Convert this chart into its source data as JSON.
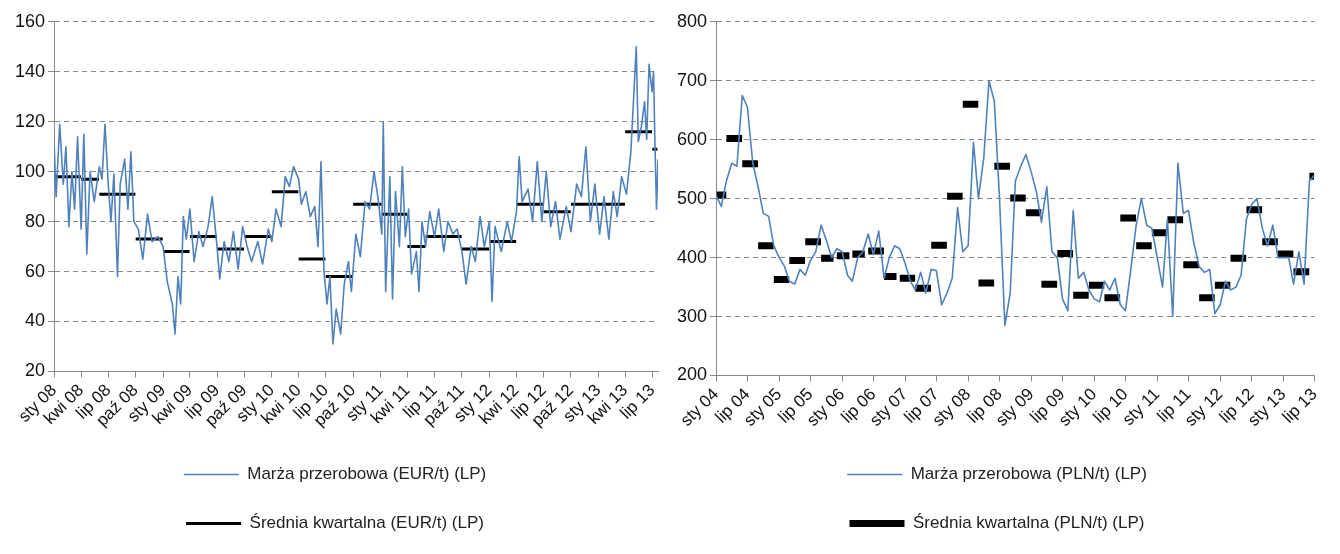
{
  "chart_data": [
    {
      "type": "line",
      "xlim": [
        "2008-01-01",
        "2013-07-20"
      ],
      "ylim": [
        20,
        160
      ],
      "yticks": [
        20,
        40,
        60,
        80,
        100,
        120,
        140,
        160
      ],
      "xticks": [
        {
          "value": "2008-01-01",
          "label": "sty 08"
        },
        {
          "value": "2008-04-01",
          "label": "kwi 08"
        },
        {
          "value": "2008-07-01",
          "label": "lip 08"
        },
        {
          "value": "2008-10-01",
          "label": "paź 08"
        },
        {
          "value": "2009-01-01",
          "label": "sty 09"
        },
        {
          "value": "2009-04-01",
          "label": "kwi 09"
        },
        {
          "value": "2009-07-01",
          "label": "lip 09"
        },
        {
          "value": "2009-10-01",
          "label": "paź 09"
        },
        {
          "value": "2010-01-01",
          "label": "sty 10"
        },
        {
          "value": "2010-04-01",
          "label": "kwi 10"
        },
        {
          "value": "2010-07-01",
          "label": "lip 10"
        },
        {
          "value": "2010-10-01",
          "label": "paź 10"
        },
        {
          "value": "2011-01-01",
          "label": "sty 11"
        },
        {
          "value": "2011-04-01",
          "label": "kwi 11"
        },
        {
          "value": "2011-07-01",
          "label": "lip 11"
        },
        {
          "value": "2011-10-01",
          "label": "paź 11"
        },
        {
          "value": "2012-01-01",
          "label": "sty 12"
        },
        {
          "value": "2012-04-01",
          "label": "kwi 12"
        },
        {
          "value": "2012-07-01",
          "label": "lip 12"
        },
        {
          "value": "2012-10-01",
          "label": "paź 12"
        },
        {
          "value": "2013-01-01",
          "label": "sty 13"
        },
        {
          "value": "2013-04-01",
          "label": "kwi 13"
        },
        {
          "value": "2013-07-01",
          "label": "lip 13"
        }
      ],
      "grid": "y",
      "legend": "bottom",
      "marker": "none",
      "series": [
        {
          "name": "Marża przerobowa (EUR/t) (LP)",
          "color": "#4f81bd",
          "x": [
            "2008-01-01",
            "2008-01-08",
            "2008-01-20",
            "2008-02-01",
            "2008-02-10",
            "2008-02-20",
            "2008-03-01",
            "2008-03-10",
            "2008-03-20",
            "2008-04-01",
            "2008-04-10",
            "2008-04-20",
            "2008-05-01",
            "2008-05-15",
            "2008-06-01",
            "2008-06-10",
            "2008-06-20",
            "2008-07-01",
            "2008-07-10",
            "2008-07-20",
            "2008-08-01",
            "2008-08-10",
            "2008-08-25",
            "2008-09-05",
            "2008-09-15",
            "2008-09-25",
            "2008-10-10",
            "2008-10-25",
            "2008-11-10",
            "2008-11-25",
            "2008-12-15",
            "2009-01-01",
            "2009-01-15",
            "2009-02-01",
            "2009-02-10",
            "2009-02-20",
            "2009-03-01",
            "2009-03-10",
            "2009-03-20",
            "2009-04-01",
            "2009-04-15",
            "2009-05-01",
            "2009-05-15",
            "2009-06-01",
            "2009-06-15",
            "2009-07-01",
            "2009-07-10",
            "2009-07-25",
            "2009-08-10",
            "2009-08-25",
            "2009-09-10",
            "2009-09-25",
            "2009-10-10",
            "2009-10-25",
            "2009-11-15",
            "2009-12-01",
            "2009-12-20",
            "2010-01-01",
            "2010-01-15",
            "2010-02-01",
            "2010-02-15",
            "2010-03-01",
            "2010-03-15",
            "2010-04-01",
            "2010-04-10",
            "2010-04-25",
            "2010-05-10",
            "2010-05-25",
            "2010-06-05",
            "2010-06-15",
            "2010-06-25",
            "2010-07-05",
            "2010-07-15",
            "2010-07-25",
            "2010-08-05",
            "2010-08-20",
            "2010-09-01",
            "2010-09-15",
            "2010-09-25",
            "2010-10-10",
            "2010-10-25",
            "2010-11-10",
            "2010-11-25",
            "2010-12-10",
            "2010-12-25",
            "2011-01-05",
            "2011-01-10",
            "2011-01-18",
            "2011-02-01",
            "2011-02-10",
            "2011-02-20",
            "2011-03-05",
            "2011-03-15",
            "2011-03-25",
            "2011-04-05",
            "2011-04-15",
            "2011-05-01",
            "2011-05-10",
            "2011-05-20",
            "2011-06-01",
            "2011-06-15",
            "2011-07-01",
            "2011-07-15",
            "2011-08-01",
            "2011-08-15",
            "2011-09-01",
            "2011-09-15",
            "2011-10-01",
            "2011-10-15",
            "2011-11-01",
            "2011-11-15",
            "2011-12-01",
            "2011-12-15",
            "2012-01-01",
            "2012-01-10",
            "2012-01-20",
            "2012-02-10",
            "2012-03-01",
            "2012-03-15",
            "2012-04-01",
            "2012-04-10",
            "2012-04-20",
            "2012-05-10",
            "2012-05-25",
            "2012-06-10",
            "2012-06-25",
            "2012-07-10",
            "2012-07-25",
            "2012-08-10",
            "2012-08-25",
            "2012-09-15",
            "2012-10-01",
            "2012-10-20",
            "2012-11-05",
            "2012-11-20",
            "2012-12-05",
            "2012-12-20",
            "2013-01-05",
            "2013-01-20",
            "2013-02-05",
            "2013-02-20",
            "2013-03-05",
            "2013-03-20",
            "2013-04-05",
            "2013-04-20",
            "2013-05-08",
            "2013-05-15",
            "2013-05-25",
            "2013-06-05",
            "2013-06-12",
            "2013-06-20",
            "2013-06-30",
            "2013-07-05",
            "2013-07-10",
            "2013-07-15",
            "2013-07-20"
          ],
          "values": [
            112,
            90,
            119,
            95,
            110,
            78,
            100,
            85,
            114,
            77,
            115,
            67,
            100,
            88,
            102,
            97,
            119,
            95,
            80,
            99,
            58,
            95,
            105,
            85,
            108,
            80,
            77,
            65,
            83,
            72,
            74,
            70,
            56,
            47,
            35,
            58,
            47,
            82,
            73,
            85,
            64,
            76,
            70,
            78,
            90,
            70,
            57,
            72,
            64,
            76,
            61,
            78,
            70,
            64,
            72,
            63,
            77,
            72,
            85,
            78,
            98,
            94,
            102,
            97,
            87,
            92,
            82,
            86,
            70,
            104,
            60,
            47,
            58,
            31,
            45,
            35,
            55,
            64,
            52,
            75,
            66,
            88,
            85,
            100,
            88,
            75,
            120,
            52,
            98,
            49,
            92,
            70,
            102,
            74,
            85,
            59,
            68,
            52,
            80,
            70,
            84,
            74,
            85,
            68,
            80,
            75,
            77,
            68,
            55,
            70,
            64,
            82,
            70,
            80,
            48,
            78,
            68,
            80,
            72,
            84,
            106,
            88,
            93,
            80,
            104,
            80,
            100,
            78,
            88,
            73,
            86,
            76,
            95,
            90,
            110,
            80,
            95,
            75,
            90,
            73,
            92,
            82,
            98,
            91,
            108,
            150,
            112,
            118,
            128,
            113,
            143,
            132,
            140,
            110,
            85,
            105
          ]
        },
        {
          "name": "Średnia kwartalna (EUR/t) (LP)",
          "color": "#000000",
          "x": [
            "2008-01-03",
            "2008-03-31"
          ],
          "values": [
            98,
            98
          ]
        },
        {
          "color": "#000000",
          "x": [
            "2008-04-01",
            "2008-05-31"
          ],
          "values": [
            97,
            97
          ]
        },
        {
          "color": "#000000",
          "x": [
            "2008-06-01",
            "2008-09-30"
          ],
          "values": [
            91,
            91
          ]
        },
        {
          "color": "#000000",
          "x": [
            "2008-10-01",
            "2008-12-31"
          ],
          "values": [
            73,
            73
          ]
        },
        {
          "color": "#000000",
          "x": [
            "2009-01-01",
            "2009-03-31"
          ],
          "values": [
            68,
            68
          ]
        },
        {
          "color": "#000000",
          "x": [
            "2009-04-01",
            "2009-06-30"
          ],
          "values": [
            74,
            74
          ]
        },
        {
          "color": "#000000",
          "x": [
            "2009-07-01",
            "2009-09-30"
          ],
          "values": [
            69,
            69
          ]
        },
        {
          "color": "#000000",
          "x": [
            "2009-10-01",
            "2009-12-31"
          ],
          "values": [
            74,
            74
          ]
        },
        {
          "color": "#000000",
          "x": [
            "2010-01-01",
            "2010-03-31"
          ],
          "values": [
            92,
            92
          ]
        },
        {
          "color": "#000000",
          "x": [
            "2010-04-01",
            "2010-06-30"
          ],
          "values": [
            65,
            65
          ]
        },
        {
          "color": "#000000",
          "x": [
            "2010-07-01",
            "2010-09-30"
          ],
          "values": [
            58,
            58
          ]
        },
        {
          "color": "#000000",
          "x": [
            "2010-10-01",
            "2011-01-04"
          ],
          "values": [
            87,
            87
          ]
        },
        {
          "color": "#000000",
          "x": [
            "2011-01-05",
            "2011-03-31"
          ],
          "values": [
            83,
            83
          ]
        },
        {
          "color": "#000000",
          "x": [
            "2011-04-01",
            "2011-05-31"
          ],
          "values": [
            70,
            70
          ]
        },
        {
          "color": "#000000",
          "x": [
            "2011-06-01",
            "2011-09-30"
          ],
          "values": [
            74,
            74
          ]
        },
        {
          "color": "#000000",
          "x": [
            "2011-10-01",
            "2011-12-31"
          ],
          "values": [
            69,
            69
          ]
        },
        {
          "color": "#000000",
          "x": [
            "2012-01-01",
            "2012-03-31"
          ],
          "values": [
            72,
            72
          ]
        },
        {
          "color": "#000000",
          "x": [
            "2012-04-01",
            "2012-06-30"
          ],
          "values": [
            87,
            87
          ]
        },
        {
          "color": "#000000",
          "x": [
            "2012-07-01",
            "2012-09-30"
          ],
          "values": [
            84,
            84
          ]
        },
        {
          "color": "#000000",
          "x": [
            "2012-10-01",
            "2013-03-31"
          ],
          "values": [
            87,
            87
          ]
        },
        {
          "color": "#000000",
          "x": [
            "2013-04-01",
            "2013-06-30"
          ],
          "values": [
            116,
            116
          ]
        },
        {
          "color": "#000000",
          "x": [
            "2013-07-01",
            "2013-07-18"
          ],
          "values": [
            109,
            109
          ]
        }
      ]
    },
    {
      "type": "line",
      "xlim": [
        "2004-01-01",
        "2013-07-01"
      ],
      "ylim": [
        200,
        800
      ],
      "yticks": [
        200,
        300,
        400,
        500,
        600,
        700,
        800
      ],
      "xticks": [
        {
          "value": "2004-01-01",
          "label": "sty 04"
        },
        {
          "value": "2004-07-01",
          "label": "lip 04"
        },
        {
          "value": "2005-01-01",
          "label": "sty 05"
        },
        {
          "value": "2005-07-01",
          "label": "lip 05"
        },
        {
          "value": "2006-01-01",
          "label": "sty 06"
        },
        {
          "value": "2006-07-01",
          "label": "lip 06"
        },
        {
          "value": "2007-01-01",
          "label": "sty 07"
        },
        {
          "value": "2007-07-01",
          "label": "lip 07"
        },
        {
          "value": "2008-01-01",
          "label": "sty 08"
        },
        {
          "value": "2008-07-01",
          "label": "lip 08"
        },
        {
          "value": "2009-01-01",
          "label": "sty 09"
        },
        {
          "value": "2009-07-01",
          "label": "lip 09"
        },
        {
          "value": "2010-01-01",
          "label": "sty 10"
        },
        {
          "value": "2010-07-01",
          "label": "lip 10"
        },
        {
          "value": "2011-01-01",
          "label": "sty 11"
        },
        {
          "value": "2011-07-01",
          "label": "lip 11"
        },
        {
          "value": "2012-01-01",
          "label": "sty 12"
        },
        {
          "value": "2012-07-01",
          "label": "lip 12"
        },
        {
          "value": "2013-01-01",
          "label": "sty 13"
        },
        {
          "value": "2013-07-01",
          "label": "lip 13"
        }
      ],
      "grid": "y",
      "legend": "bottom",
      "marker": "none",
      "series": [
        {
          "name": "Marża przerobowa (PLN/t) (LP)",
          "color": "#4f81bd",
          "x": [
            "2004-01",
            "2004-02",
            "2004-03",
            "2004-04",
            "2004-05",
            "2004-06",
            "2004-07",
            "2004-08",
            "2004-09",
            "2004-10",
            "2004-11",
            "2004-12",
            "2005-01",
            "2005-02",
            "2005-03",
            "2005-04",
            "2005-05",
            "2005-06",
            "2005-07",
            "2005-08",
            "2005-09",
            "2005-10",
            "2005-11",
            "2005-12",
            "2006-01",
            "2006-02",
            "2006-03",
            "2006-04",
            "2006-05",
            "2006-06",
            "2006-07",
            "2006-08",
            "2006-09",
            "2006-10",
            "2006-11",
            "2006-12",
            "2007-01",
            "2007-02",
            "2007-03",
            "2007-04",
            "2007-05",
            "2007-06",
            "2007-07",
            "2007-08",
            "2007-09",
            "2007-10",
            "2007-11",
            "2007-12",
            "2008-01",
            "2008-02",
            "2008-03",
            "2008-04",
            "2008-05",
            "2008-06",
            "2008-07",
            "2008-08",
            "2008-09",
            "2008-10",
            "2008-11",
            "2008-12",
            "2009-01",
            "2009-02",
            "2009-03",
            "2009-04",
            "2009-05",
            "2009-06",
            "2009-07",
            "2009-08",
            "2009-09",
            "2009-10",
            "2009-11",
            "2009-12",
            "2010-01",
            "2010-02",
            "2010-03",
            "2010-04",
            "2010-05",
            "2010-06",
            "2010-07",
            "2010-08",
            "2010-09",
            "2010-10",
            "2010-11",
            "2010-12",
            "2011-01",
            "2011-02",
            "2011-03",
            "2011-04",
            "2011-05",
            "2011-06",
            "2011-07",
            "2011-08",
            "2011-09",
            "2011-10",
            "2011-11",
            "2011-12",
            "2012-01",
            "2012-02",
            "2012-03",
            "2012-04",
            "2012-05",
            "2012-06",
            "2012-07",
            "2012-08",
            "2012-09",
            "2012-10",
            "2012-11",
            "2012-12",
            "2013-01",
            "2013-02",
            "2013-03",
            "2013-04",
            "2013-05",
            "2013-06",
            "2013-07"
          ],
          "values": [
            505,
            487,
            530,
            560,
            555,
            675,
            655,
            560,
            520,
            475,
            470,
            420,
            400,
            385,
            360,
            355,
            380,
            370,
            395,
            410,
            455,
            430,
            400,
            415,
            410,
            370,
            360,
            400,
            410,
            440,
            405,
            445,
            365,
            400,
            420,
            415,
            390,
            360,
            345,
            375,
            340,
            380,
            378,
            320,
            340,
            365,
            485,
            410,
            420,
            595,
            500,
            570,
            700,
            665,
            500,
            285,
            340,
            530,
            555,
            575,
            545,
            510,
            460,
            520,
            410,
            400,
            330,
            310,
            480,
            365,
            375,
            345,
            330,
            325,
            360,
            345,
            365,
            320,
            310,
            380,
            455,
            500,
            455,
            450,
            400,
            350,
            465,
            300,
            560,
            475,
            480,
            425,
            385,
            375,
            380,
            305,
            320,
            360,
            345,
            350,
            370,
            465,
            490,
            500,
            450,
            420,
            455,
            400,
            400,
            400,
            355,
            410,
            355,
            530,
            540
          ]
        },
        {
          "name": "Średnia kwartalna (PLN/t) (LP)",
          "color": "#000000",
          "x": [
            "2004-01-05",
            "2004-02-29"
          ],
          "values": [
            506,
            506
          ]
        },
        {
          "color": "#000000",
          "x": [
            "2004-03-01",
            "2004-05-31"
          ],
          "values": [
            602,
            602
          ]
        },
        {
          "color": "#000000",
          "x": [
            "2004-06-01",
            "2004-08-31"
          ],
          "values": [
            559,
            559
          ]
        },
        {
          "color": "#000000",
          "x": [
            "2004-09-01",
            "2004-11-30"
          ],
          "values": [
            420,
            420
          ]
        },
        {
          "color": "#000000",
          "x": [
            "2004-12-01",
            "2005-02-28"
          ],
          "values": [
            363,
            363
          ]
        },
        {
          "color": "#000000",
          "x": [
            "2005-03-01",
            "2005-05-31"
          ],
          "values": [
            395,
            395
          ]
        },
        {
          "color": "#000000",
          "x": [
            "2005-06-01",
            "2005-08-31"
          ],
          "values": [
            427,
            427
          ]
        },
        {
          "color": "#000000",
          "x": [
            "2005-09-01",
            "2005-11-12"
          ],
          "values": [
            399,
            399
          ]
        },
        {
          "color": "#000000",
          "x": [
            "2005-12-01",
            "2006-02-12"
          ],
          "values": [
            403,
            403
          ]
        },
        {
          "color": "#000000",
          "x": [
            "2006-03-01",
            "2006-05-12"
          ],
          "values": [
            406,
            406
          ]
        },
        {
          "color": "#000000",
          "x": [
            "2006-06-01",
            "2006-08-31"
          ],
          "values": [
            411,
            411
          ]
        },
        {
          "color": "#000000",
          "x": [
            "2006-09-01",
            "2006-11-12"
          ],
          "values": [
            368,
            368
          ]
        },
        {
          "color": "#000000",
          "x": [
            "2006-12-01",
            "2007-02-28"
          ],
          "values": [
            365,
            365
          ]
        },
        {
          "color": "#000000",
          "x": [
            "2007-03-01",
            "2007-05-31"
          ],
          "values": [
            348,
            348
          ]
        },
        {
          "color": "#000000",
          "x": [
            "2007-06-01",
            "2007-08-31"
          ],
          "values": [
            421,
            421
          ]
        },
        {
          "color": "#000000",
          "x": [
            "2007-09-01",
            "2007-11-30"
          ],
          "values": [
            504,
            504
          ]
        },
        {
          "color": "#000000",
          "x": [
            "2007-12-01",
            "2008-02-29"
          ],
          "values": [
            660,
            660
          ]
        },
        {
          "color": "#000000",
          "x": [
            "2008-03-01",
            "2008-05-31"
          ],
          "values": [
            357,
            357
          ]
        },
        {
          "color": "#000000",
          "x": [
            "2008-06-01",
            "2008-08-31"
          ],
          "values": [
            555,
            555
          ]
        },
        {
          "color": "#000000",
          "x": [
            "2008-09-01",
            "2008-11-30"
          ],
          "values": [
            501,
            501
          ]
        },
        {
          "color": "#000000",
          "x": [
            "2008-12-01",
            "2009-02-28"
          ],
          "values": [
            476,
            476
          ]
        },
        {
          "color": "#000000",
          "x": [
            "2009-03-01",
            "2009-05-31"
          ],
          "values": [
            355,
            355
          ]
        },
        {
          "color": "#000000",
          "x": [
            "2009-06-01",
            "2009-08-31"
          ],
          "values": [
            407,
            407
          ]
        },
        {
          "color": "#000000",
          "x": [
            "2009-09-01",
            "2009-11-30"
          ],
          "values": [
            336,
            336
          ]
        },
        {
          "color": "#000000",
          "x": [
            "2009-12-01",
            "2010-02-28"
          ],
          "values": [
            353,
            353
          ]
        },
        {
          "color": "#000000",
          "x": [
            "2010-03-01",
            "2010-05-31"
          ],
          "values": [
            332,
            332
          ]
        },
        {
          "color": "#000000",
          "x": [
            "2010-06-01",
            "2010-08-31"
          ],
          "values": [
            467,
            467
          ]
        },
        {
          "color": "#000000",
          "x": [
            "2010-09-01",
            "2010-11-30"
          ],
          "values": [
            420,
            420
          ]
        },
        {
          "color": "#000000",
          "x": [
            "2010-12-01",
            "2011-02-28"
          ],
          "values": [
            442,
            442
          ]
        },
        {
          "color": "#000000",
          "x": [
            "2011-03-01",
            "2011-05-31"
          ],
          "values": [
            464,
            464
          ]
        },
        {
          "color": "#000000",
          "x": [
            "2011-06-01",
            "2011-08-31"
          ],
          "values": [
            388,
            388
          ]
        },
        {
          "color": "#000000",
          "x": [
            "2011-09-01",
            "2011-11-30"
          ],
          "values": [
            332,
            332
          ]
        },
        {
          "color": "#000000",
          "x": [
            "2011-12-01",
            "2012-02-29"
          ],
          "values": [
            353,
            353
          ]
        },
        {
          "color": "#000000",
          "x": [
            "2012-03-01",
            "2012-05-31"
          ],
          "values": [
            399,
            399
          ]
        },
        {
          "color": "#000000",
          "x": [
            "2012-06-01",
            "2012-08-31"
          ],
          "values": [
            481,
            481
          ]
        },
        {
          "color": "#000000",
          "x": [
            "2012-09-01",
            "2012-11-30"
          ],
          "values": [
            427,
            427
          ]
        },
        {
          "color": "#000000",
          "x": [
            "2012-12-01",
            "2013-02-28"
          ],
          "values": [
            406,
            406
          ]
        },
        {
          "color": "#000000",
          "x": [
            "2013-03-01",
            "2013-05-31"
          ],
          "values": [
            376,
            376
          ]
        },
        {
          "color": "#000000",
          "x": [
            "2013-06-01",
            "2013-06-28"
          ],
          "values": [
            538,
            538
          ]
        }
      ]
    }
  ]
}
